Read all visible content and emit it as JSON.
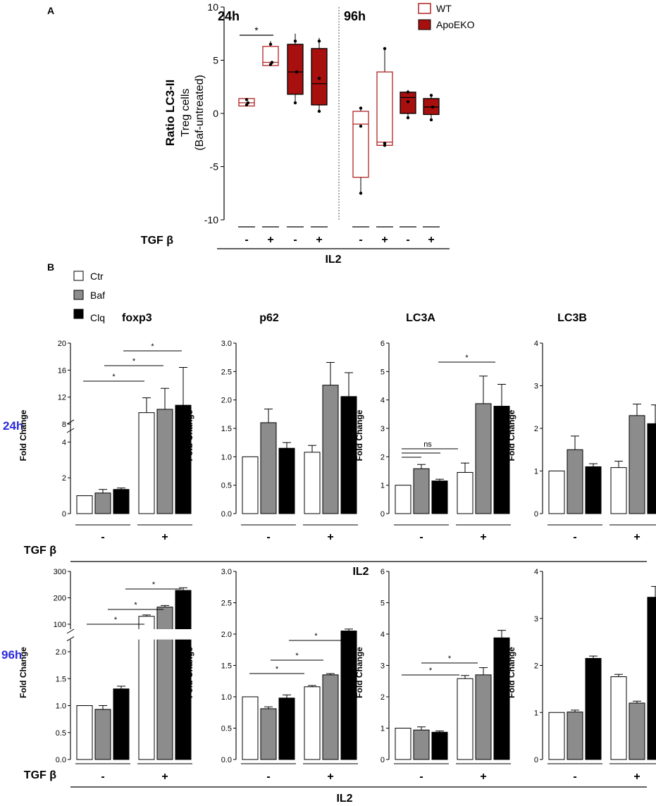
{
  "colors": {
    "black": "#000000",
    "gray": "#8c8c8c",
    "white": "#ffffff",
    "wt_outline": "#b22222",
    "apoeko_fill": "#a80f0f",
    "time_blue": "#2a2adc",
    "divider": "#555555"
  },
  "panelA": {
    "letter": "A",
    "ylabel_1": "Ratio LC3-II",
    "ylabel_2": "Treg cells",
    "ylabel_3": "(Baf-untreated)",
    "tick_labels": [
      "10",
      "5",
      "0",
      "-5",
      "-10"
    ],
    "time_24": "24h",
    "time_96": "96h",
    "star": "*",
    "legend": {
      "wt": "WT",
      "apoeko": "ApoEKO"
    },
    "tgf_label": "TGF β",
    "tgf_signs": [
      "-",
      "+",
      "-",
      "+",
      "-",
      "+",
      "-",
      "+"
    ],
    "il2": "IL2"
  },
  "panelB": {
    "letter": "B",
    "legend": {
      "ctr": "Ctr",
      "baf": "Baf",
      "clq": "Clq"
    },
    "ylabel": "Fold Change",
    "row_24": "24h",
    "row_96": "96h",
    "tgf_label": "TGF β",
    "minus": "-",
    "plus": "+",
    "il2": "IL2",
    "star": "*",
    "ns": "ns",
    "titles": [
      "foxp3",
      "p62",
      "LC3A",
      "LC3B"
    ],
    "ticks": {
      "r24c0": [
        "0",
        "2",
        "4",
        "8",
        "12",
        "16",
        "20"
      ],
      "r24c1": [
        "0.0",
        "0.5",
        "1.0",
        "1.5",
        "2.0",
        "2.5",
        "3.0"
      ],
      "r24c2": [
        "0",
        "1",
        "2",
        "3",
        "4",
        "5",
        "6"
      ],
      "r24c3": [
        "0",
        "1",
        "2",
        "3",
        "4"
      ],
      "r96c0": [
        "0.0",
        "0.5",
        "1.0",
        "1.5",
        "2.0",
        "100",
        "200",
        "300"
      ],
      "r96c1": [
        "0.0",
        "0.5",
        "1.0",
        "1.5",
        "2.0",
        "2.5",
        "3.0"
      ],
      "r96c2": [
        "0",
        "1",
        "2",
        "3",
        "4",
        "5",
        "6"
      ],
      "r96c3": [
        "0",
        "1",
        "2",
        "3",
        "4"
      ]
    }
  },
  "chart_data": [
    {
      "type": "box",
      "title": "Ratio LC3-II Treg cells (Baf-untreated)",
      "ylim": [
        -10,
        10
      ],
      "groups": [
        {
          "time": "24h",
          "genotype": "WT",
          "tgf": "-",
          "min": 0.7,
          "q1": 0.7,
          "median": 1.0,
          "q3": 1.4,
          "max": 1.4,
          "points": [
            0.8,
            1.0,
            1.3
          ]
        },
        {
          "time": "24h",
          "genotype": "WT",
          "tgf": "+",
          "min": 4.5,
          "q1": 4.5,
          "median": 4.8,
          "q3": 6.3,
          "max": 6.8,
          "points": [
            4.6,
            4.8,
            6.5
          ]
        },
        {
          "time": "24h",
          "genotype": "ApoEKO",
          "tgf": "-",
          "min": 1.0,
          "q1": 1.8,
          "median": 3.9,
          "q3": 6.5,
          "max": 7.5,
          "points": [
            1.0,
            3.9,
            6.8
          ]
        },
        {
          "time": "24h",
          "genotype": "ApoEKO",
          "tgf": "+",
          "min": 0.2,
          "q1": 0.8,
          "median": 2.8,
          "q3": 6.1,
          "max": 7.1,
          "points": [
            0.2,
            3.3,
            6.8
          ]
        },
        {
          "time": "96h",
          "genotype": "WT",
          "tgf": "-",
          "min": -7.5,
          "q1": -6.0,
          "median": -1.0,
          "q3": 0.2,
          "max": 0.5,
          "points": [
            -7.5,
            -1.2,
            0.5
          ]
        },
        {
          "time": "96h",
          "genotype": "WT",
          "tgf": "+",
          "min": -3.0,
          "q1": -3.0,
          "median": -2.7,
          "q3": 3.9,
          "max": 6.1,
          "points": [
            -3.0,
            -2.8,
            6.1
          ]
        },
        {
          "time": "96h",
          "genotype": "ApoEKO",
          "tgf": "-",
          "min": -0.4,
          "q1": 0.0,
          "median": 1.5,
          "q3": 2.0,
          "max": 2.2,
          "points": [
            -0.4,
            1.1,
            2.0
          ]
        },
        {
          "time": "96h",
          "genotype": "ApoEKO",
          "tgf": "+",
          "min": -0.6,
          "q1": -0.1,
          "median": 0.6,
          "q3": 1.4,
          "max": 1.7,
          "points": [
            -0.6,
            0.6,
            1.7
          ]
        }
      ]
    },
    {
      "type": "bar",
      "time": "24h",
      "gene": "foxp3",
      "categories": [
        "TGF β -",
        "TGF β +"
      ],
      "series": [
        {
          "name": "Ctr",
          "values": [
            1.0,
            9.7
          ],
          "errors": [
            0,
            2.2
          ]
        },
        {
          "name": "Baf",
          "values": [
            1.15,
            10.2
          ],
          "errors": [
            0.2,
            3.1
          ]
        },
        {
          "name": "Clq",
          "values": [
            1.35,
            10.8
          ],
          "errors": [
            0.08,
            5.6
          ]
        }
      ]
    },
    {
      "type": "bar",
      "time": "24h",
      "gene": "p62",
      "categories": [
        "TGF β -",
        "TGF β +"
      ],
      "series": [
        {
          "name": "Ctr",
          "values": [
            1.0,
            1.08
          ],
          "errors": [
            0,
            0.12
          ]
        },
        {
          "name": "Baf",
          "values": [
            1.6,
            2.26
          ],
          "errors": [
            0.24,
            0.4
          ]
        },
        {
          "name": "Clq",
          "values": [
            1.15,
            2.06
          ],
          "errors": [
            0.1,
            0.42
          ]
        }
      ]
    },
    {
      "type": "bar",
      "time": "24h",
      "gene": "LC3A",
      "categories": [
        "TGF β -",
        "TGF β +"
      ],
      "series": [
        {
          "name": "Ctr",
          "values": [
            1.0,
            1.45
          ],
          "errors": [
            0,
            0.33
          ]
        },
        {
          "name": "Baf",
          "values": [
            1.58,
            3.87
          ],
          "errors": [
            0.15,
            0.97
          ]
        },
        {
          "name": "Clq",
          "values": [
            1.15,
            3.78
          ],
          "errors": [
            0.06,
            0.77
          ]
        }
      ]
    },
    {
      "type": "bar",
      "time": "24h",
      "gene": "LC3B",
      "categories": [
        "TGF β -",
        "TGF β +"
      ],
      "series": [
        {
          "name": "Ctr",
          "values": [
            1.0,
            1.08
          ],
          "errors": [
            0,
            0.15
          ]
        },
        {
          "name": "Baf",
          "values": [
            1.5,
            2.3
          ],
          "errors": [
            0.32,
            0.27
          ]
        },
        {
          "name": "Clq",
          "values": [
            1.1,
            2.11
          ],
          "errors": [
            0.07,
            0.44
          ]
        }
      ]
    },
    {
      "type": "bar",
      "time": "96h",
      "gene": "foxp3",
      "categories": [
        "TGF β -",
        "TGF β +"
      ],
      "series": [
        {
          "name": "Ctr",
          "values": [
            1.0,
            130
          ],
          "errors": [
            0,
            5
          ]
        },
        {
          "name": "Baf",
          "values": [
            0.93,
            165
          ],
          "errors": [
            0.07,
            6
          ]
        },
        {
          "name": "Clq",
          "values": [
            1.31,
            228
          ],
          "errors": [
            0.05,
            10
          ]
        }
      ]
    },
    {
      "type": "bar",
      "time": "96h",
      "gene": "p62",
      "categories": [
        "TGF β -",
        "TGF β +"
      ],
      "series": [
        {
          "name": "Ctr",
          "values": [
            1.0,
            1.16
          ],
          "errors": [
            0,
            0.02
          ]
        },
        {
          "name": "Baf",
          "values": [
            0.81,
            1.35
          ],
          "errors": [
            0.03,
            0.02
          ]
        },
        {
          "name": "Clq",
          "values": [
            0.98,
            2.05
          ],
          "errors": [
            0.05,
            0.03
          ]
        }
      ]
    },
    {
      "type": "bar",
      "time": "96h",
      "gene": "LC3A",
      "categories": [
        "TGF β -",
        "TGF β +"
      ],
      "series": [
        {
          "name": "Ctr",
          "values": [
            1.0,
            2.58
          ],
          "errors": [
            0,
            0.1
          ]
        },
        {
          "name": "Baf",
          "values": [
            0.94,
            2.7
          ],
          "errors": [
            0.1,
            0.23
          ]
        },
        {
          "name": "Clq",
          "values": [
            0.87,
            3.88
          ],
          "errors": [
            0.04,
            0.24
          ]
        }
      ]
    },
    {
      "type": "bar",
      "time": "96h",
      "gene": "LC3B",
      "categories": [
        "TGF β -",
        "TGF β +"
      ],
      "series": [
        {
          "name": "Ctr",
          "values": [
            1.0,
            1.76
          ],
          "errors": [
            0,
            0.05
          ]
        },
        {
          "name": "Baf",
          "values": [
            1.01,
            1.2
          ],
          "errors": [
            0.04,
            0.04
          ]
        },
        {
          "name": "Clq",
          "values": [
            2.15,
            3.45
          ],
          "errors": [
            0.05,
            0.23
          ]
        }
      ]
    }
  ]
}
